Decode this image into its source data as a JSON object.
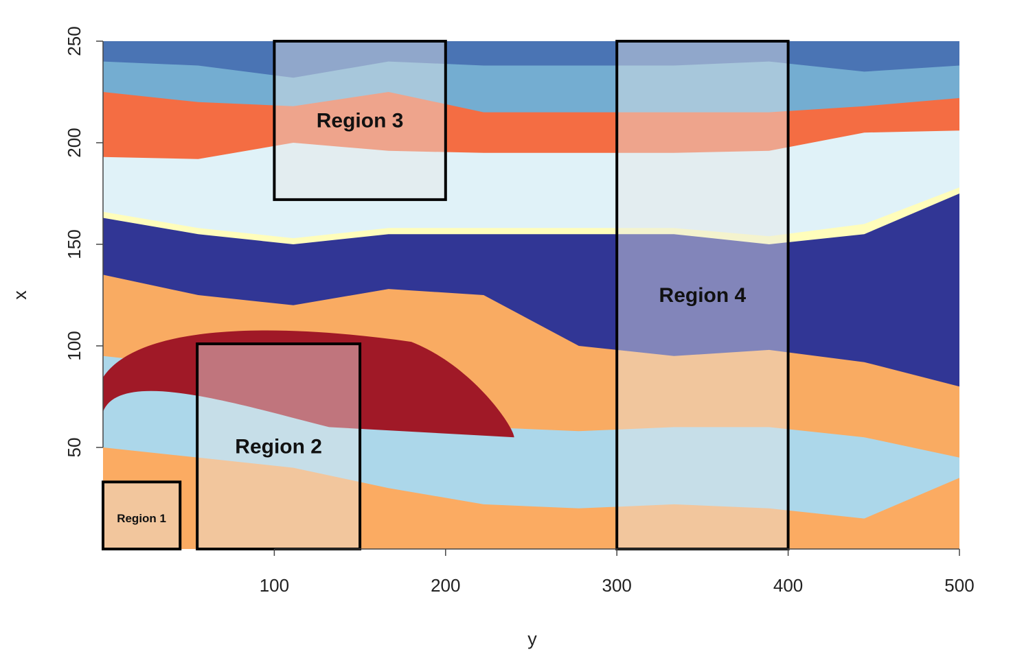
{
  "chart_data": {
    "type": "heatmap",
    "title": "",
    "xlabel": "y",
    "ylabel": "x",
    "xlim": [
      0,
      500
    ],
    "ylim": [
      0,
      250
    ],
    "x_ticks": [
      100,
      200,
      300,
      400,
      500
    ],
    "y_ticks": [
      50,
      100,
      150,
      200,
      250
    ],
    "grid": false,
    "legend": "none",
    "layers": [
      {
        "color": "#fbab62",
        "top": [
          50,
          45,
          40,
          30,
          22,
          20,
          22,
          20,
          15,
          35
        ]
      },
      {
        "color": "#acd7ea",
        "top": [
          95,
          90,
          75,
          68,
          60,
          58,
          60,
          60,
          55,
          45
        ]
      },
      {
        "color": "#f9ab62",
        "top": [
          135,
          125,
          120,
          128,
          125,
          100,
          95,
          98,
          92,
          80
        ]
      },
      {
        "color": "#a01927",
        "y_range": [
          55,
          110
        ],
        "x_range": [
          0,
          240
        ]
      },
      {
        "color": "#313695",
        "top": [
          163,
          155,
          150,
          155,
          155,
          155,
          155,
          150,
          155,
          175
        ]
      },
      {
        "color": "#fffdbb",
        "top": [
          166,
          158,
          153,
          158,
          158,
          158,
          158,
          154,
          160,
          178
        ]
      },
      {
        "color": "#e0f2f8",
        "top": [
          193,
          192,
          200,
          196,
          195,
          195,
          195,
          196,
          205,
          206
        ]
      },
      {
        "color": "#f46d43",
        "top": [
          225,
          220,
          218,
          225,
          215,
          215,
          215,
          215,
          218,
          222
        ]
      },
      {
        "color": "#74add1",
        "top": [
          240,
          238,
          232,
          240,
          238,
          238,
          238,
          240,
          235,
          238
        ]
      },
      {
        "color": "#4a74b4",
        "top": [
          250,
          250,
          250,
          250,
          250,
          250,
          250,
          250,
          250,
          250
        ]
      }
    ],
    "annotations": [
      {
        "label": "Region 1",
        "x_range": [
          0,
          45
        ],
        "y_range": [
          0,
          33
        ]
      },
      {
        "label": "Region 2",
        "x_range": [
          55,
          150
        ],
        "y_range": [
          0,
          101
        ]
      },
      {
        "label": "Region 3",
        "x_range": [
          100,
          200
        ],
        "y_range": [
          172,
          250
        ]
      },
      {
        "label": "Region 4",
        "x_range": [
          300,
          400
        ],
        "y_range": [
          0,
          250
        ]
      }
    ]
  }
}
